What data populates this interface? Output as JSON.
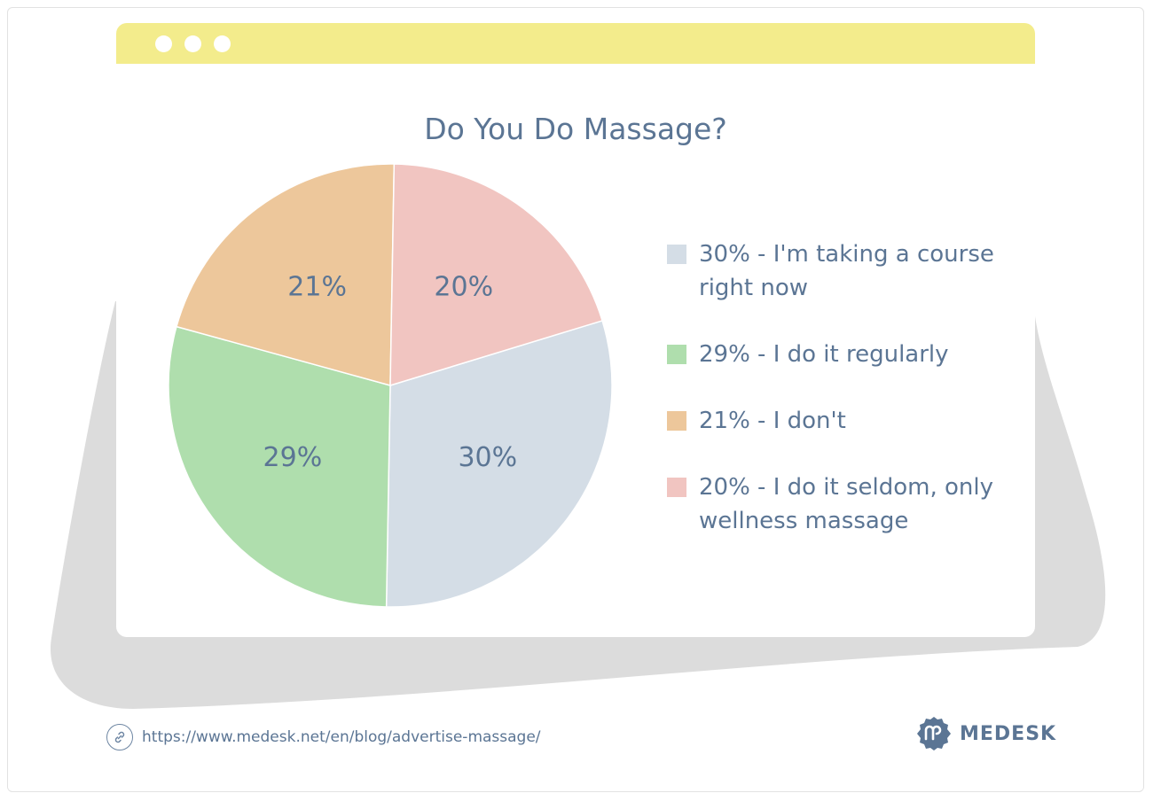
{
  "chart_data": {
    "type": "pie",
    "title": "Do You Do Massage?",
    "slices": [
      {
        "label": "I'm taking a course right now",
        "legend": "30% - I'm taking a course right now",
        "value": 30,
        "value_label": "30%",
        "color": "#d4dde6"
      },
      {
        "label": "I do it regularly",
        "legend": "29% - I do it regularly",
        "value": 29,
        "value_label": "29%",
        "color": "#afdead"
      },
      {
        "label": "I don't",
        "legend": "21% - I don't",
        "value": 21,
        "value_label": "21%",
        "color": "#edc79b"
      },
      {
        "label": "I do it seldom, only wellness massage",
        "legend": "20% - I do it seldom, only wellness massage",
        "value": 20,
        "value_label": "20%",
        "color": "#f1c5c1"
      }
    ],
    "legend_position": "right"
  },
  "footer": {
    "url": "https://www.medesk.net/en/blog/advertise-massage/",
    "brand": "MEDESK"
  },
  "colors": {
    "titlebar": "#f3ec8c",
    "text": "#5b7594",
    "shadow": "#dcdcdc"
  },
  "icons": {
    "link": "link-icon",
    "logo": "medesk-logo-icon"
  }
}
